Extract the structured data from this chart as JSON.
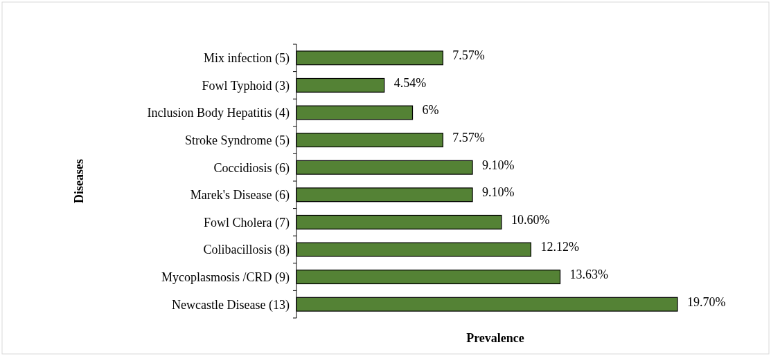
{
  "chart_data": {
    "type": "bar",
    "orientation": "horizontal",
    "xlabel": "Prevalence",
    "ylabel": "Diseases",
    "categories": [
      "Mix infection (5)",
      "Fowl Typhoid (3)",
      "Inclusion Body Hepatitis (4)",
      "Stroke Syndrome (5)",
      "Coccidiosis (6)",
      "Marek's Disease (6)",
      "Fowl Cholera (7)",
      "Colibacillosis (8)",
      "Mycoplasmosis /CRD (9)",
      "Newcastle Disease (13)"
    ],
    "values": [
      7.57,
      4.54,
      6,
      7.57,
      9.1,
      9.1,
      10.6,
      12.12,
      13.63,
      19.7
    ],
    "value_labels": [
      "7.57%",
      "4.54%",
      "6%",
      "7.57%",
      "9.10%",
      "9.10%",
      "10.60%",
      "12.12%",
      "13.63%",
      "19.70%"
    ],
    "color": "#548235",
    "tick_labels": "y"
  }
}
